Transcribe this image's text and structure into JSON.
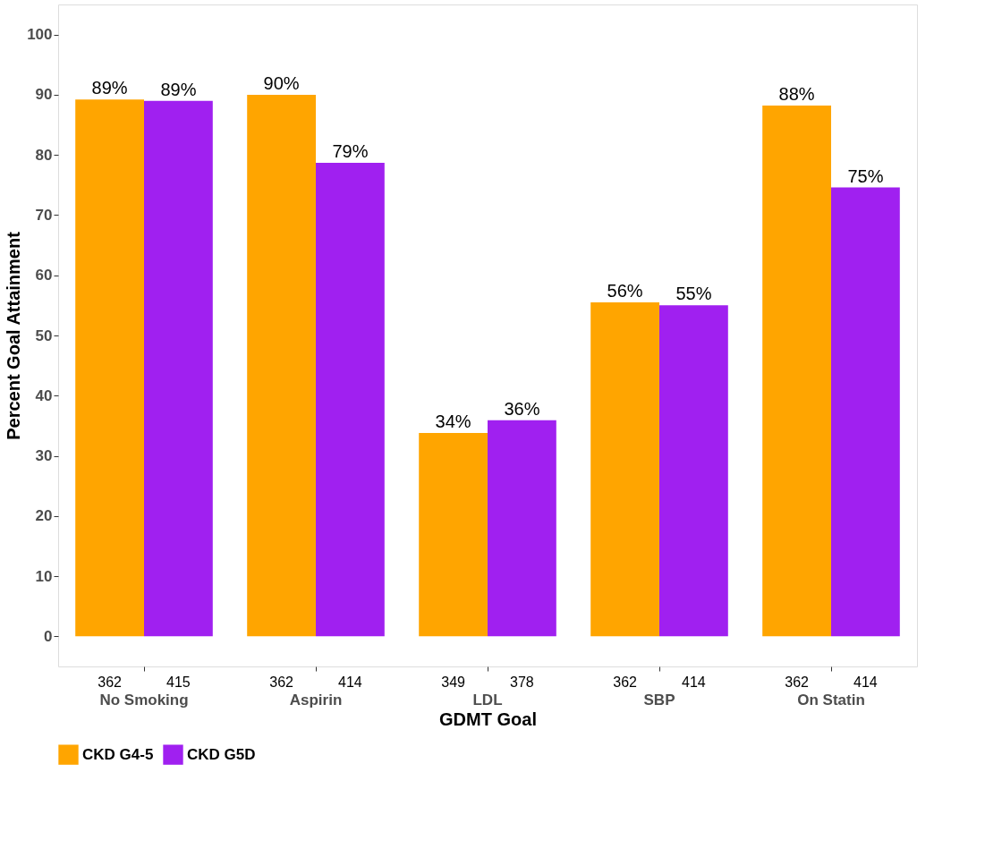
{
  "chart_data": {
    "type": "bar",
    "xlabel": "GDMT Goal",
    "ylabel": "Percent Goal Attainment",
    "categories": [
      "No Smoking",
      "Aspirin",
      "LDL",
      "SBP",
      "On Statin"
    ],
    "series": [
      {
        "name": "CKD G4-5",
        "color": "#ffa500",
        "values": [
          89.2,
          90.0,
          33.8,
          55.5,
          88.2
        ],
        "value_labels": [
          "89%",
          "90%",
          "34%",
          "56%",
          "88%"
        ]
      },
      {
        "name": "CKD G5D",
        "color": "#a020f0",
        "values": [
          89.0,
          78.7,
          35.9,
          55.0,
          74.6
        ],
        "value_labels": [
          "89%",
          "79%",
          "36%",
          "55%",
          "75%"
        ]
      }
    ],
    "annotations": [
      "362",
      "415",
      "362",
      "414",
      "349",
      "378",
      "362",
      "414",
      "362",
      "414"
    ],
    "ylim": [
      -5,
      105
    ],
    "yticks": [
      0,
      10,
      20,
      30,
      40,
      50,
      60,
      70,
      80,
      90,
      100
    ],
    "grid": false,
    "legend": "bottom"
  }
}
